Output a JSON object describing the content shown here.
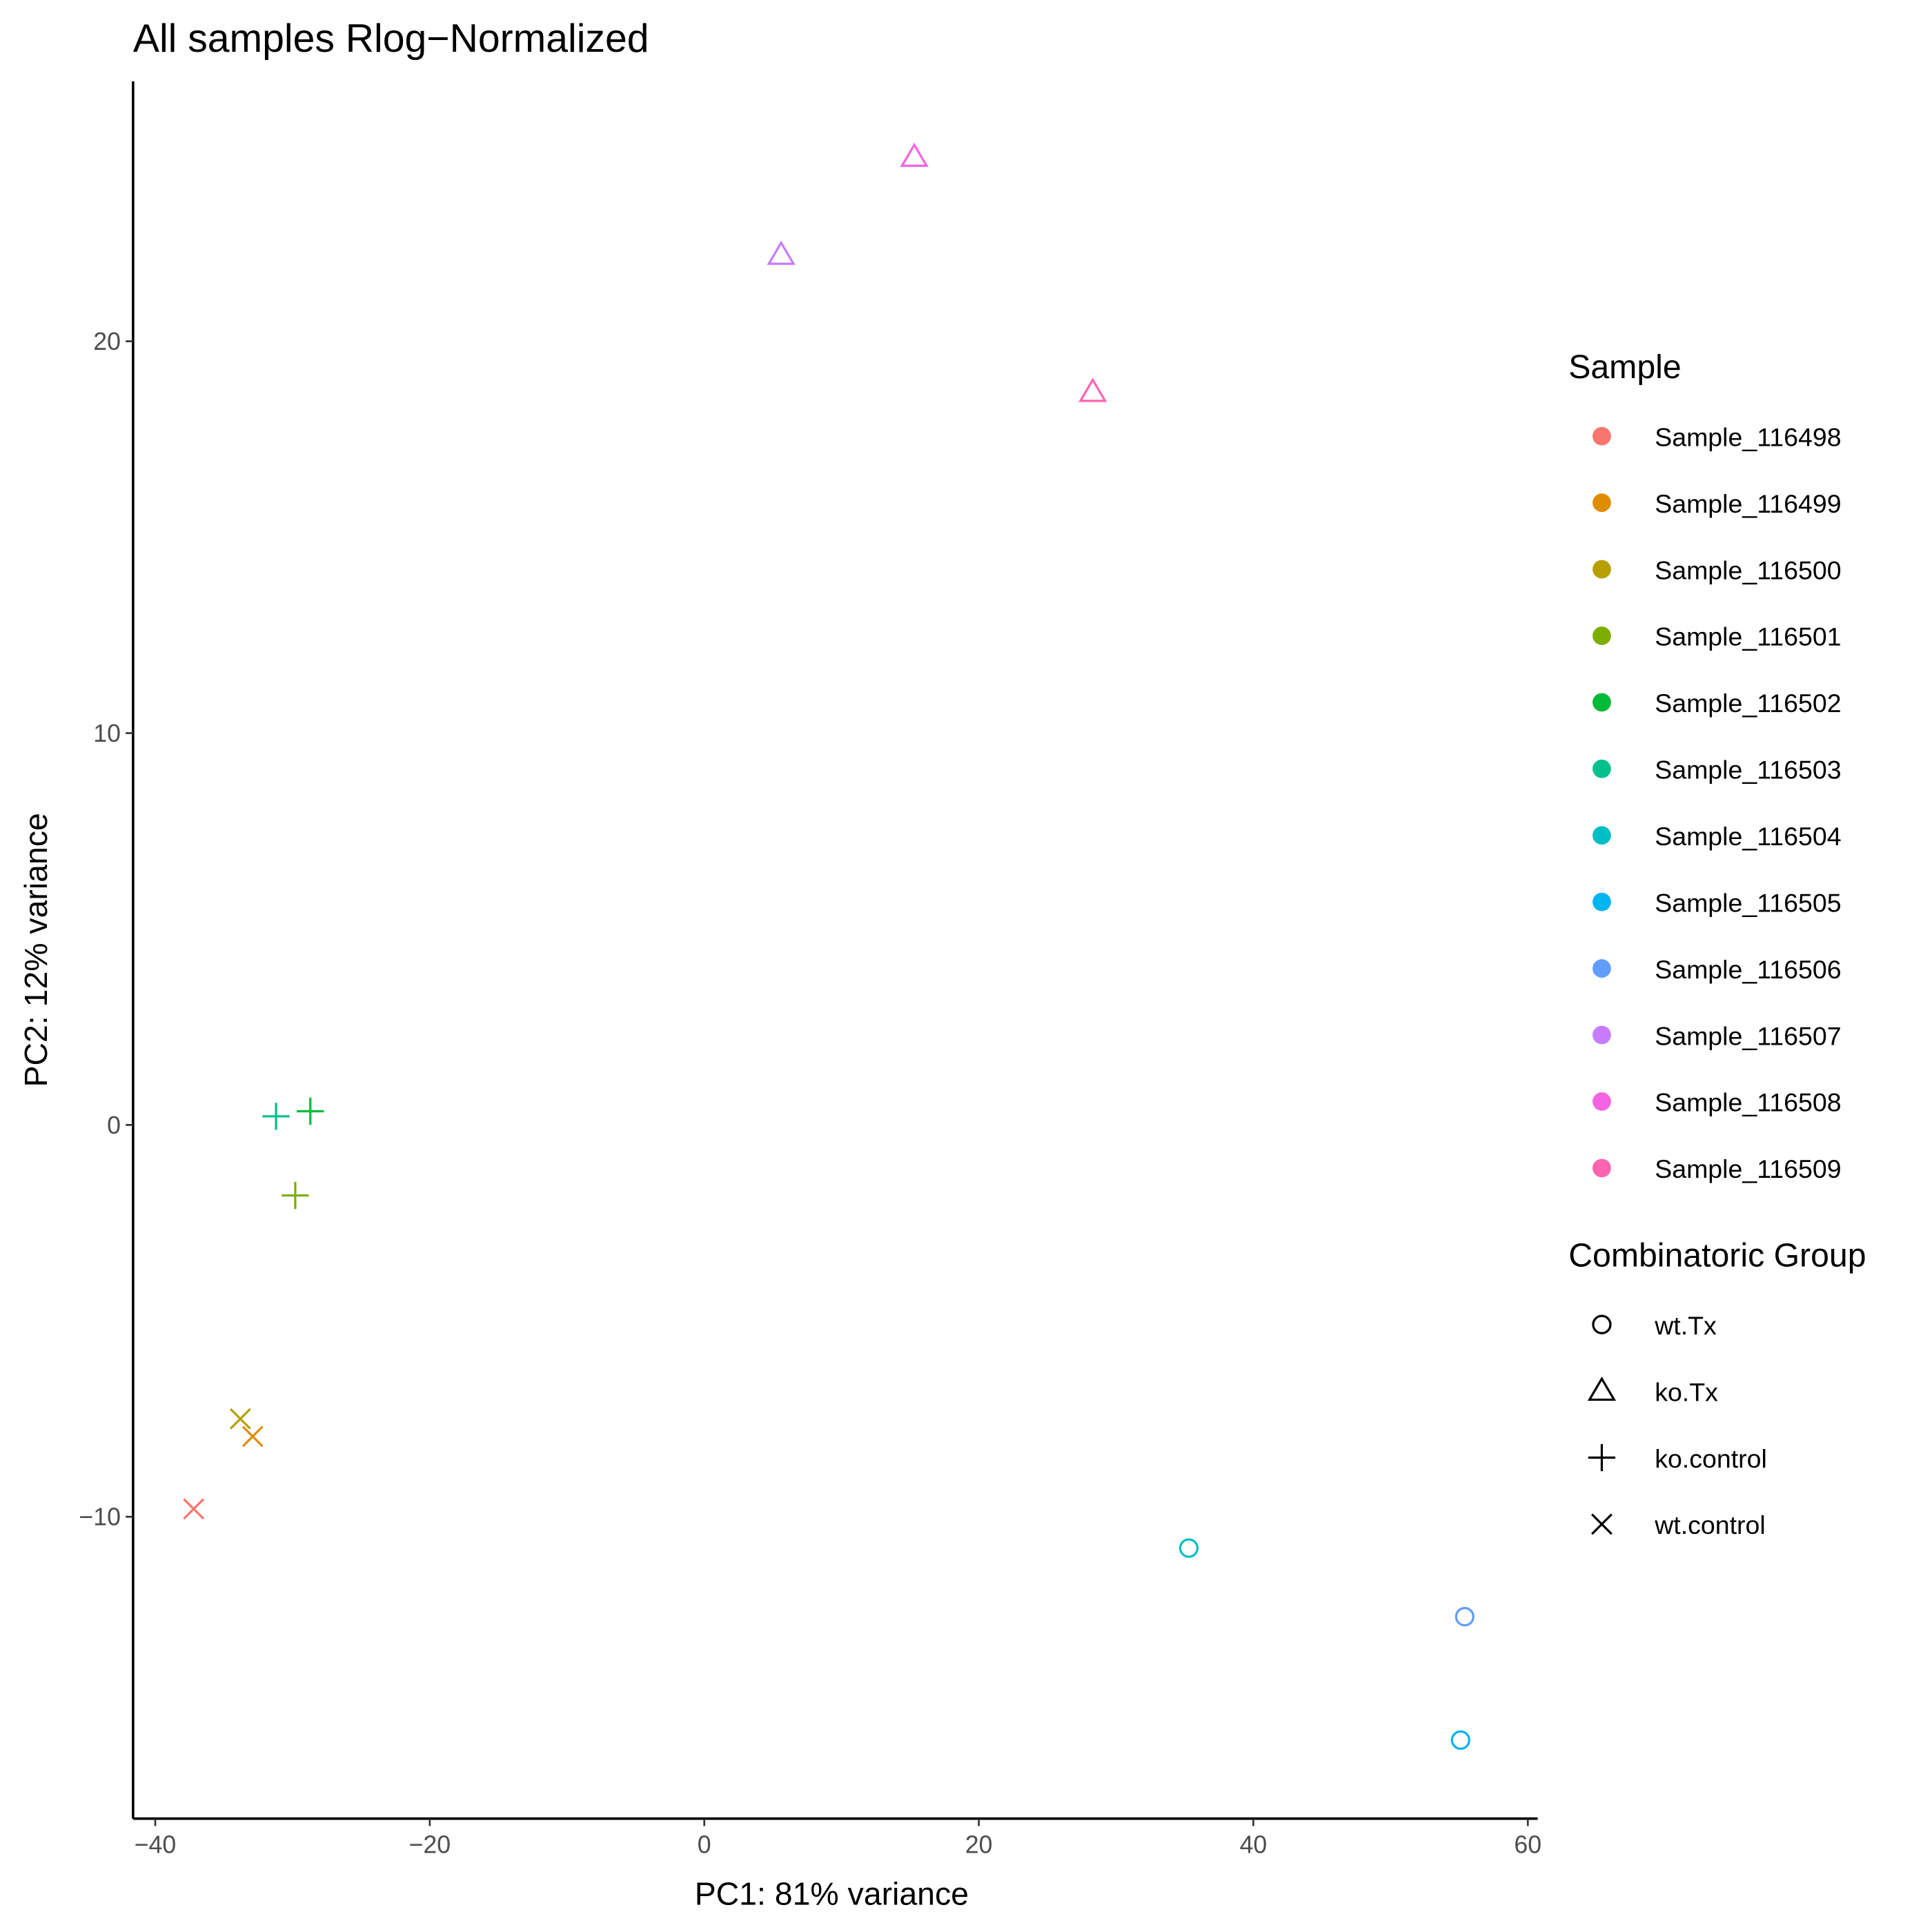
{
  "chart_data": {
    "type": "scatter",
    "title": "All samples Rlog−Normalized",
    "xlabel": "PC1: 81% variance",
    "ylabel": "PC2: 12% variance",
    "xlim": [
      -41.8,
      60.5
    ],
    "ylim": [
      -17.7,
      26.6
    ],
    "xticks": [
      -40,
      -20,
      0,
      20,
      40,
      60
    ],
    "xtick_labels": [
      "−40",
      "−20",
      "0",
      "20",
      "40",
      "60"
    ],
    "yticks": [
      -10,
      0,
      10,
      20
    ],
    "ytick_labels": [
      "−10",
      "0",
      "10",
      "20"
    ],
    "grid": false,
    "legend_position": "right",
    "color_legend_title": "Sample",
    "shape_legend_title": "Combinatoric Group",
    "samples": [
      {
        "name": "Sample_116498",
        "color": "#F8766D"
      },
      {
        "name": "Sample_116499",
        "color": "#DE8C00"
      },
      {
        "name": "Sample_116500",
        "color": "#B79F00"
      },
      {
        "name": "Sample_116501",
        "color": "#7CAE00"
      },
      {
        "name": "Sample_116502",
        "color": "#00BA38"
      },
      {
        "name": "Sample_116503",
        "color": "#00C08B"
      },
      {
        "name": "Sample_116504",
        "color": "#00BFC4"
      },
      {
        "name": "Sample_116505",
        "color": "#00B4F0"
      },
      {
        "name": "Sample_116506",
        "color": "#619CFF"
      },
      {
        "name": "Sample_116507",
        "color": "#C77CFF"
      },
      {
        "name": "Sample_116508",
        "color": "#F564E3"
      },
      {
        "name": "Sample_116509",
        "color": "#FF64B0"
      }
    ],
    "groups": [
      {
        "name": "wt.Tx",
        "shape": "circle"
      },
      {
        "name": "ko.Tx",
        "shape": "triangle"
      },
      {
        "name": "ko.control",
        "shape": "plus"
      },
      {
        "name": "wt.control",
        "shape": "cross"
      }
    ],
    "points": [
      {
        "sample": 0,
        "group": 3,
        "x": -37.2,
        "y": -9.8
      },
      {
        "sample": 1,
        "group": 3,
        "x": -32.9,
        "y": -7.95
      },
      {
        "sample": 2,
        "group": 3,
        "x": -33.8,
        "y": -7.5
      },
      {
        "sample": 3,
        "group": 2,
        "x": -29.8,
        "y": -1.8
      },
      {
        "sample": 4,
        "group": 2,
        "x": -28.7,
        "y": 0.35
      },
      {
        "sample": 5,
        "group": 2,
        "x": -31.2,
        "y": 0.22
      },
      {
        "sample": 6,
        "group": 0,
        "x": 35.3,
        "y": -10.8
      },
      {
        "sample": 7,
        "group": 0,
        "x": 55.1,
        "y": -15.7
      },
      {
        "sample": 8,
        "group": 0,
        "x": 55.4,
        "y": -12.55
      },
      {
        "sample": 9,
        "group": 1,
        "x": 5.6,
        "y": 22.2
      },
      {
        "sample": 10,
        "group": 1,
        "x": 15.3,
        "y": 24.7
      },
      {
        "sample": 11,
        "group": 1,
        "x": 28.3,
        "y": 18.7
      }
    ]
  }
}
